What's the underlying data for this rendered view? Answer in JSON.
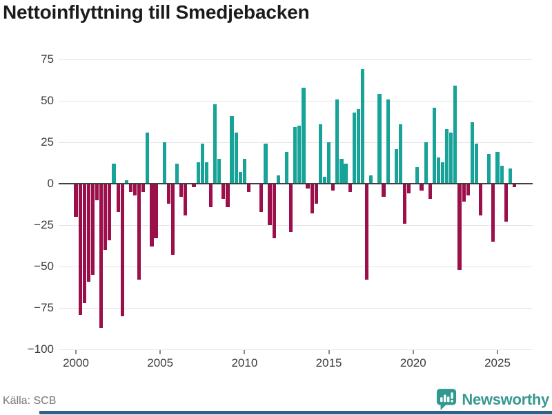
{
  "title": "Nettoinflyttning till Smedjebacken",
  "footer": {
    "source": "Källa: SCB",
    "brand": "Newsworthy"
  },
  "colors": {
    "positive": "#17a398",
    "negative": "#9b0f4a",
    "grid": "#e6e6e6",
    "zero_line": "#3f3f3f",
    "axis_text": "#3d3d3d",
    "title_text": "#1b1b1b",
    "source_text": "#757575",
    "brand_teal": "#389890",
    "accent_strip": "#2e5f8d"
  },
  "chart_data": {
    "type": "bar",
    "title": "Nettoinflyttning till Smedjebacken",
    "frequency": "quarterly",
    "start": "2000-Q1",
    "end": "2026-Q1",
    "xlabel": "",
    "ylabel": "",
    "ylim": [
      -100,
      80
    ],
    "y_ticks": [
      75,
      50,
      25,
      0,
      -25,
      -50,
      -75,
      -100
    ],
    "x_tick_labels": [
      "2000",
      "2005",
      "2010",
      "2015",
      "2020",
      "2025"
    ],
    "grid": true,
    "legend": false,
    "source": "Källa: SCB",
    "values": [
      -20,
      -79,
      -72,
      -59,
      -55,
      -10,
      -87,
      -40,
      -34,
      12,
      -17,
      -80,
      2,
      -5,
      -7,
      -58,
      -5,
      31,
      -38,
      -33,
      0,
      25,
      -12,
      -43,
      12,
      -8,
      -19,
      0,
      -2,
      13,
      24,
      13,
      -14,
      48,
      15,
      -9,
      -14,
      41,
      31,
      7,
      15,
      -5,
      0,
      0,
      -17,
      24,
      -25,
      -33,
      5,
      0,
      19,
      -29,
      34,
      35,
      58,
      -3,
      -18,
      -12,
      36,
      4,
      25,
      -4,
      51,
      15,
      12,
      -5,
      43,
      45,
      69,
      -58,
      5,
      0,
      54,
      -8,
      51,
      0,
      21,
      36,
      -24,
      -6,
      0,
      10,
      -4,
      25,
      -9,
      46,
      16,
      13,
      33,
      31,
      59,
      -52,
      -11,
      -7,
      37,
      24,
      -19,
      0,
      18,
      -35,
      19,
      11,
      -23,
      9,
      -2
    ]
  }
}
